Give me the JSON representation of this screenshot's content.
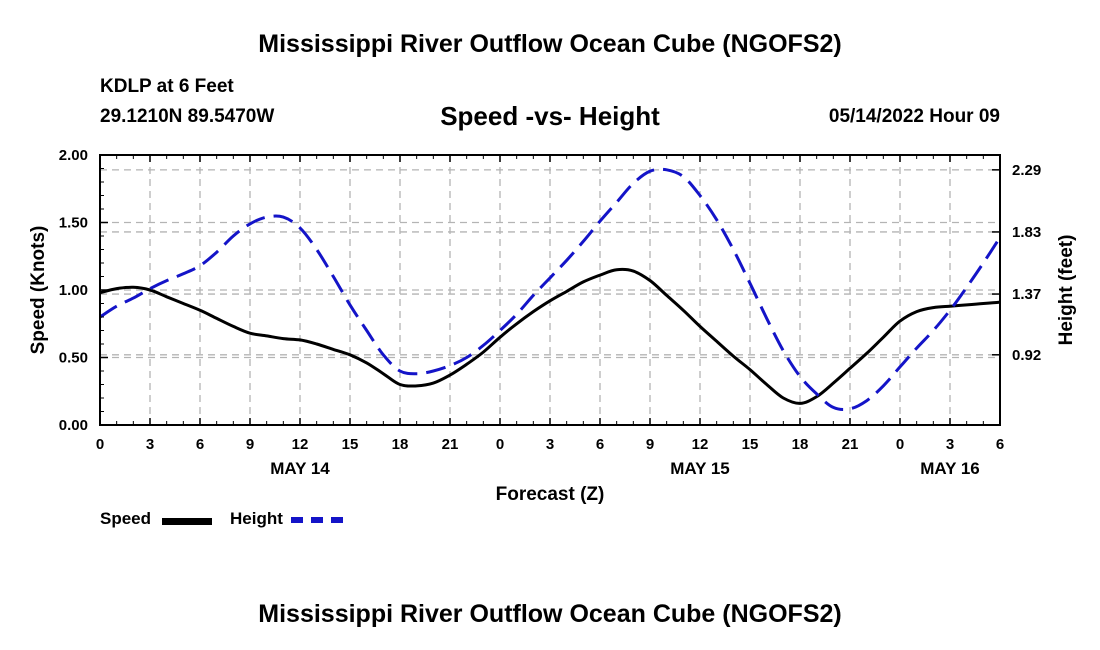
{
  "header": {
    "title": "Mississippi River Outflow Ocean Cube (NGOFS2)",
    "station": "KDLP at 6 Feet",
    "coordinates": "29.1210N  89.5470W",
    "subtitle": "Speed -vs- Height",
    "datetime": "05/14/2022 Hour 09"
  },
  "footer": {
    "title": "Mississippi River Outflow Ocean Cube (NGOFS2)"
  },
  "legend": {
    "speed_label": "Speed",
    "height_label": "Height"
  },
  "colors": {
    "speed": "#000000",
    "height": "#1414c8",
    "grid": "#b4b4b4"
  },
  "chart_data": {
    "type": "line",
    "xlabel": "Forecast (Z)",
    "ylabel_left": "Speed (Knots)",
    "ylabel_right": "Height (feet)",
    "x_range_hours": [
      0,
      54
    ],
    "x_ticks": [
      {
        "hour": 0,
        "label": "0"
      },
      {
        "hour": 3,
        "label": "3"
      },
      {
        "hour": 6,
        "label": "6"
      },
      {
        "hour": 9,
        "label": "9"
      },
      {
        "hour": 12,
        "label": "12"
      },
      {
        "hour": 15,
        "label": "15"
      },
      {
        "hour": 18,
        "label": "18"
      },
      {
        "hour": 21,
        "label": "21"
      },
      {
        "hour": 24,
        "label": "0"
      },
      {
        "hour": 27,
        "label": "3"
      },
      {
        "hour": 30,
        "label": "6"
      },
      {
        "hour": 33,
        "label": "9"
      },
      {
        "hour": 36,
        "label": "12"
      },
      {
        "hour": 39,
        "label": "15"
      },
      {
        "hour": 42,
        "label": "18"
      },
      {
        "hour": 45,
        "label": "21"
      },
      {
        "hour": 48,
        "label": "0"
      },
      {
        "hour": 51,
        "label": "3"
      },
      {
        "hour": 54,
        "label": "6"
      }
    ],
    "date_labels": [
      {
        "hour": 12,
        "label": "MAY 14"
      },
      {
        "hour": 36,
        "label": "MAY 15"
      },
      {
        "hour": 51,
        "label": "MAY 16"
      }
    ],
    "speed_axis": {
      "min": 0.0,
      "max": 2.0,
      "ticks": [
        0.0,
        0.5,
        1.0,
        1.5,
        2.0
      ],
      "tick_labels": [
        "0.00",
        "0.50",
        "1.00",
        "1.50",
        "2.00"
      ]
    },
    "height_axis": {
      "min": 0.4,
      "max": 2.4,
      "ticks": [
        0.92,
        1.37,
        1.83,
        2.29
      ],
      "tick_labels": [
        "0.92",
        "1.37",
        "1.83",
        "2.29"
      ]
    },
    "series": [
      {
        "name": "Speed",
        "axis": "left",
        "style": "solid",
        "points": [
          [
            0,
            0.98
          ],
          [
            1,
            1.01
          ],
          [
            2,
            1.02
          ],
          [
            3,
            1.0
          ],
          [
            4,
            0.95
          ],
          [
            5,
            0.9
          ],
          [
            6,
            0.85
          ],
          [
            7,
            0.79
          ],
          [
            8,
            0.73
          ],
          [
            9,
            0.68
          ],
          [
            10,
            0.66
          ],
          [
            11,
            0.64
          ],
          [
            12,
            0.63
          ],
          [
            13,
            0.6
          ],
          [
            14,
            0.56
          ],
          [
            15,
            0.52
          ],
          [
            16,
            0.46
          ],
          [
            17,
            0.38
          ],
          [
            18,
            0.3
          ],
          [
            19,
            0.29
          ],
          [
            20,
            0.31
          ],
          [
            21,
            0.37
          ],
          [
            22,
            0.45
          ],
          [
            23,
            0.54
          ],
          [
            24,
            0.65
          ],
          [
            25,
            0.75
          ],
          [
            26,
            0.84
          ],
          [
            27,
            0.92
          ],
          [
            28,
            0.99
          ],
          [
            29,
            1.06
          ],
          [
            30,
            1.11
          ],
          [
            31,
            1.15
          ],
          [
            32,
            1.14
          ],
          [
            33,
            1.07
          ],
          [
            34,
            0.96
          ],
          [
            35,
            0.85
          ],
          [
            36,
            0.73
          ],
          [
            37,
            0.62
          ],
          [
            38,
            0.51
          ],
          [
            39,
            0.41
          ],
          [
            40,
            0.3
          ],
          [
            41,
            0.2
          ],
          [
            42,
            0.16
          ],
          [
            43,
            0.21
          ],
          [
            44,
            0.31
          ],
          [
            45,
            0.42
          ],
          [
            46,
            0.53
          ],
          [
            47,
            0.65
          ],
          [
            48,
            0.77
          ],
          [
            49,
            0.84
          ],
          [
            50,
            0.87
          ],
          [
            51,
            0.88
          ],
          [
            52,
            0.89
          ],
          [
            53,
            0.9
          ],
          [
            54,
            0.91
          ]
        ]
      },
      {
        "name": "Height",
        "axis": "right",
        "style": "dashed",
        "points": [
          [
            0,
            1.2
          ],
          [
            1,
            1.28
          ],
          [
            2,
            1.34
          ],
          [
            3,
            1.41
          ],
          [
            4,
            1.47
          ],
          [
            5,
            1.52
          ],
          [
            6,
            1.58
          ],
          [
            7,
            1.68
          ],
          [
            8,
            1.8
          ],
          [
            9,
            1.89
          ],
          [
            10,
            1.94
          ],
          [
            11,
            1.94
          ],
          [
            12,
            1.86
          ],
          [
            13,
            1.7
          ],
          [
            14,
            1.5
          ],
          [
            15,
            1.29
          ],
          [
            16,
            1.1
          ],
          [
            17,
            0.92
          ],
          [
            18,
            0.8
          ],
          [
            19,
            0.78
          ],
          [
            20,
            0.8
          ],
          [
            21,
            0.84
          ],
          [
            22,
            0.9
          ],
          [
            23,
            0.99
          ],
          [
            24,
            1.1
          ],
          [
            25,
            1.22
          ],
          [
            26,
            1.36
          ],
          [
            27,
            1.49
          ],
          [
            28,
            1.62
          ],
          [
            29,
            1.76
          ],
          [
            30,
            1.91
          ],
          [
            31,
            2.05
          ],
          [
            32,
            2.19
          ],
          [
            33,
            2.28
          ],
          [
            34,
            2.29
          ],
          [
            35,
            2.24
          ],
          [
            36,
            2.1
          ],
          [
            37,
            1.92
          ],
          [
            38,
            1.7
          ],
          [
            39,
            1.45
          ],
          [
            40,
            1.19
          ],
          [
            41,
            0.95
          ],
          [
            42,
            0.76
          ],
          [
            43,
            0.63
          ],
          [
            44,
            0.53
          ],
          [
            45,
            0.52
          ],
          [
            46,
            0.58
          ],
          [
            47,
            0.69
          ],
          [
            48,
            0.83
          ],
          [
            49,
            0.97
          ],
          [
            50,
            1.1
          ],
          [
            51,
            1.25
          ],
          [
            52,
            1.42
          ],
          [
            53,
            1.6
          ],
          [
            54,
            1.79
          ]
        ]
      }
    ]
  }
}
